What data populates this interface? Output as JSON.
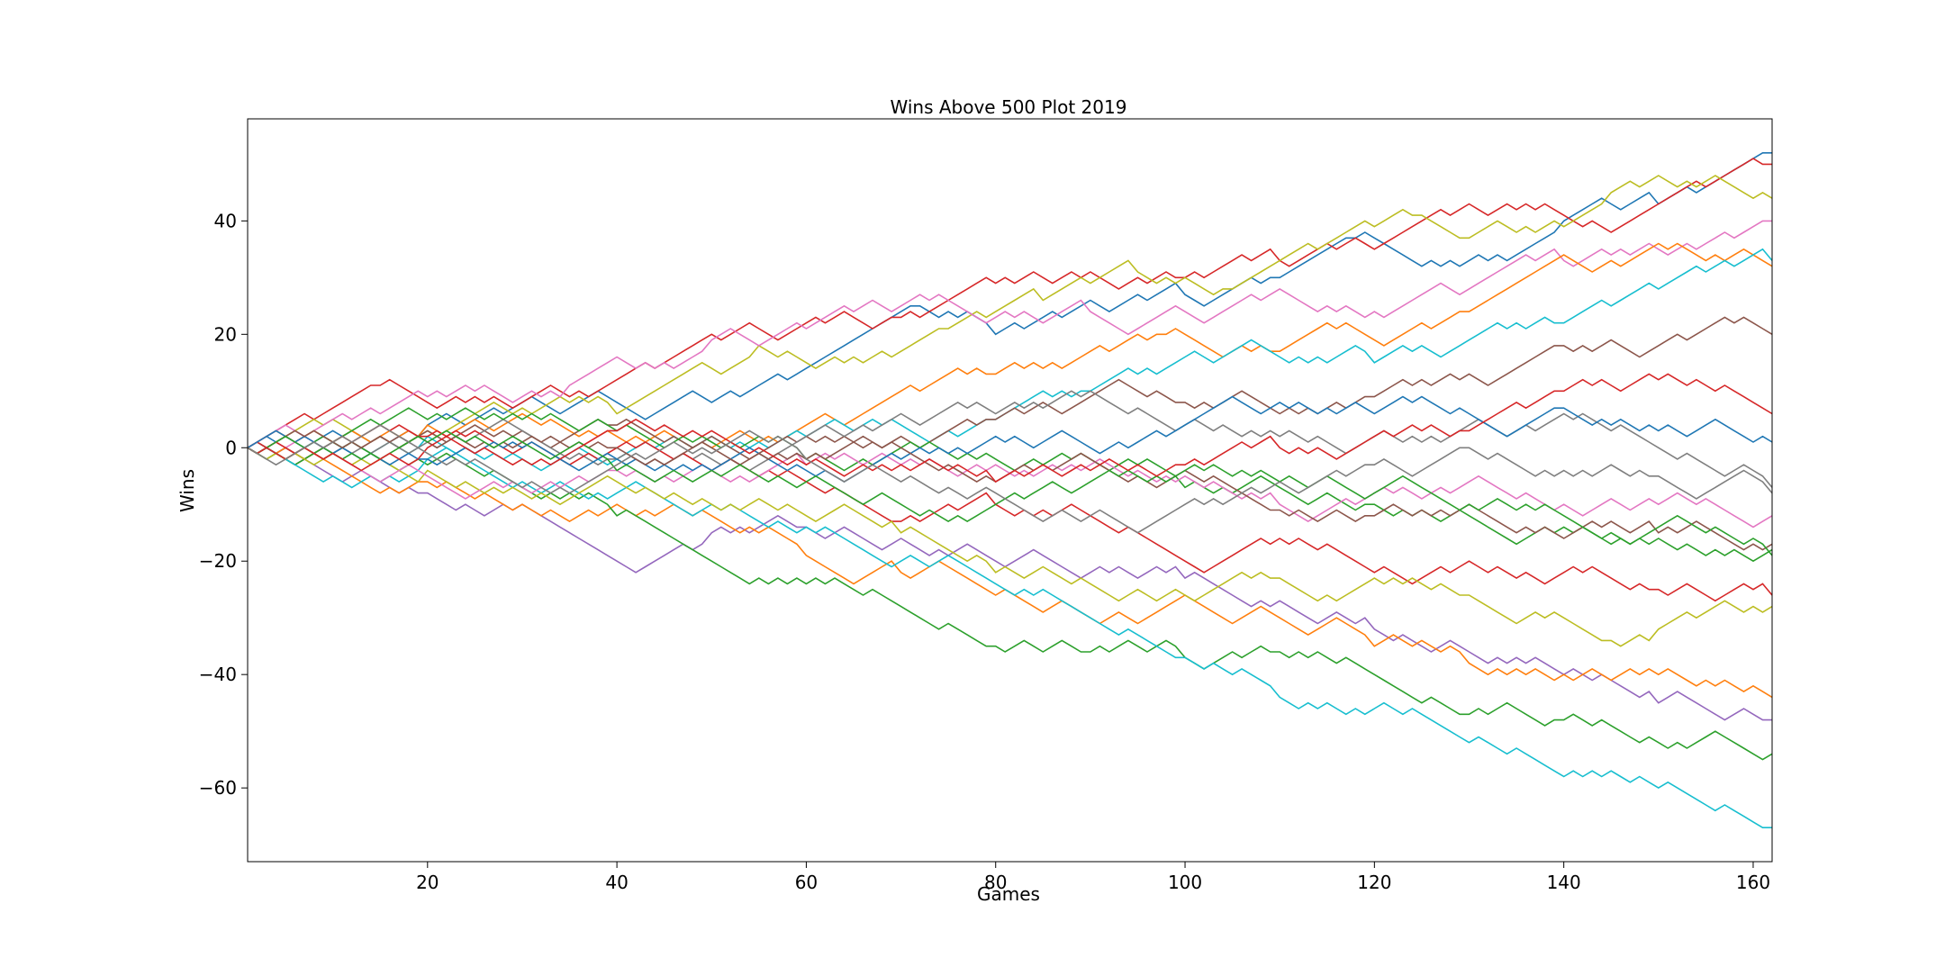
{
  "chart_data": {
    "type": "line",
    "title": "Wins Above 500 Plot 2019",
    "xlabel": "Games",
    "ylabel": "Wins",
    "xlim": [
      1,
      162
    ],
    "ylim": [
      -73,
      58
    ],
    "xticks": [
      20,
      40,
      60,
      80,
      100,
      120,
      140,
      160
    ],
    "yticks": [
      -60,
      -40,
      -20,
      0,
      20,
      40
    ],
    "grid": false,
    "legend": "none",
    "colors": [
      "#1f77b4",
      "#ff7f0e",
      "#2ca02c",
      "#d62728",
      "#9467bd",
      "#8c564b",
      "#e377c2",
      "#7f7f7f",
      "#bcbd22",
      "#17becf"
    ],
    "series": [
      {
        "color": "#1f77b4",
        "anchors": [
          [
            1,
            0
          ],
          [
            20,
            4
          ],
          [
            40,
            8
          ],
          [
            60,
            14
          ],
          [
            72,
            25
          ],
          [
            80,
            20
          ],
          [
            100,
            27
          ],
          [
            110,
            30
          ],
          [
            118,
            37
          ],
          [
            125,
            32
          ],
          [
            140,
            40
          ],
          [
            150,
            43
          ],
          [
            162,
            52
          ]
        ]
      },
      {
        "color": "#d62728",
        "anchors": [
          [
            1,
            0
          ],
          [
            15,
            11
          ],
          [
            30,
            8
          ],
          [
            45,
            15
          ],
          [
            60,
            22
          ],
          [
            70,
            23
          ],
          [
            80,
            29
          ],
          [
            90,
            31
          ],
          [
            100,
            30
          ],
          [
            110,
            33
          ],
          [
            118,
            37
          ],
          [
            125,
            40
          ],
          [
            140,
            41
          ],
          [
            150,
            43
          ],
          [
            162,
            50
          ]
        ]
      },
      {
        "color": "#bcbd22",
        "anchors": [
          [
            1,
            0
          ],
          [
            20,
            3
          ],
          [
            40,
            6
          ],
          [
            55,
            18
          ],
          [
            65,
            16
          ],
          [
            75,
            21
          ],
          [
            85,
            26
          ],
          [
            95,
            31
          ],
          [
            105,
            28
          ],
          [
            115,
            36
          ],
          [
            125,
            41
          ],
          [
            130,
            37
          ],
          [
            145,
            45
          ],
          [
            162,
            44
          ]
        ]
      },
      {
        "color": "#e377c2",
        "anchors": [
          [
            1,
            0
          ],
          [
            20,
            9
          ],
          [
            35,
            11
          ],
          [
            50,
            19
          ],
          [
            60,
            21
          ],
          [
            70,
            25
          ],
          [
            80,
            23
          ],
          [
            90,
            24
          ],
          [
            100,
            24
          ],
          [
            110,
            28
          ],
          [
            120,
            24
          ],
          [
            130,
            28
          ],
          [
            140,
            33
          ],
          [
            150,
            35
          ],
          [
            162,
            40
          ]
        ]
      },
      {
        "color": "#ff7f0e",
        "anchors": [
          [
            1,
            0
          ],
          [
            20,
            4
          ],
          [
            40,
            2
          ],
          [
            60,
            4
          ],
          [
            70,
            10
          ],
          [
            80,
            13
          ],
          [
            90,
            17
          ],
          [
            98,
            20
          ],
          [
            110,
            17
          ],
          [
            120,
            19
          ],
          [
            130,
            24
          ],
          [
            140,
            34
          ],
          [
            150,
            36
          ],
          [
            162,
            32
          ]
        ]
      },
      {
        "color": "#17becf",
        "anchors": [
          [
            1,
            0
          ],
          [
            20,
            2
          ],
          [
            40,
            -2
          ],
          [
            60,
            2
          ],
          [
            80,
            5
          ],
          [
            90,
            10
          ],
          [
            100,
            16
          ],
          [
            110,
            16
          ],
          [
            120,
            15
          ],
          [
            130,
            19
          ],
          [
            140,
            22
          ],
          [
            150,
            28
          ],
          [
            162,
            33
          ]
        ]
      },
      {
        "color": "#8c564b",
        "anchors": [
          [
            1,
            0
          ],
          [
            20,
            3
          ],
          [
            40,
            4
          ],
          [
            60,
            2
          ],
          [
            80,
            5
          ],
          [
            100,
            8
          ],
          [
            110,
            6
          ],
          [
            120,
            9
          ],
          [
            130,
            13
          ],
          [
            140,
            18
          ],
          [
            150,
            18
          ],
          [
            158,
            22
          ],
          [
            162,
            20
          ]
        ]
      },
      {
        "color": "#7f7f7f",
        "anchors": [
          [
            1,
            0
          ],
          [
            20,
            1
          ],
          [
            40,
            -2
          ],
          [
            60,
            2
          ],
          [
            80,
            6
          ],
          [
            100,
            4
          ],
          [
            120,
            2
          ],
          [
            140,
            6
          ],
          [
            150,
            0
          ],
          [
            162,
            -7
          ]
        ]
      },
      {
        "color": "#2ca02c",
        "anchors": [
          [
            1,
            0
          ],
          [
            20,
            5
          ],
          [
            40,
            3
          ],
          [
            60,
            -2
          ],
          [
            80,
            -2
          ],
          [
            100,
            -7
          ],
          [
            120,
            -10
          ],
          [
            140,
            -14
          ],
          [
            150,
            -16
          ],
          [
            162,
            -18
          ]
        ]
      },
      {
        "color": "#9467bd",
        "anchors": [
          [
            1,
            0
          ],
          [
            20,
            -8
          ],
          [
            30,
            -10
          ],
          [
            41,
            -21
          ],
          [
            50,
            -15
          ],
          [
            60,
            -14
          ],
          [
            70,
            -16
          ],
          [
            80,
            -20
          ],
          [
            90,
            -22
          ],
          [
            100,
            -23
          ],
          [
            110,
            -27
          ],
          [
            120,
            -32
          ],
          [
            130,
            -36
          ],
          [
            140,
            -40
          ],
          [
            150,
            -45
          ],
          [
            162,
            -48
          ]
        ]
      },
      {
        "color": "#ff7f0e",
        "anchors": [
          [
            1,
            0
          ],
          [
            20,
            -6
          ],
          [
            40,
            -10
          ],
          [
            60,
            -19
          ],
          [
            70,
            -22
          ],
          [
            80,
            -26
          ],
          [
            90,
            -30
          ],
          [
            100,
            -26
          ],
          [
            110,
            -30
          ],
          [
            120,
            -35
          ],
          [
            130,
            -38
          ],
          [
            140,
            -40
          ],
          [
            150,
            -40
          ],
          [
            162,
            -44
          ]
        ]
      },
      {
        "color": "#2ca02c",
        "anchors": [
          [
            1,
            0
          ],
          [
            20,
            -3
          ],
          [
            40,
            -12
          ],
          [
            50,
            -20
          ],
          [
            60,
            -24
          ],
          [
            70,
            -28
          ],
          [
            80,
            -35
          ],
          [
            90,
            -36
          ],
          [
            100,
            -37
          ],
          [
            110,
            -36
          ],
          [
            120,
            -40
          ],
          [
            130,
            -47
          ],
          [
            140,
            -48
          ],
          [
            150,
            -52
          ],
          [
            162,
            -54
          ]
        ]
      },
      {
        "color": "#17becf",
        "anchors": [
          [
            1,
            0
          ],
          [
            20,
            -2
          ],
          [
            40,
            -8
          ],
          [
            50,
            -10
          ],
          [
            60,
            -14
          ],
          [
            70,
            -20
          ],
          [
            80,
            -24
          ],
          [
            90,
            -30
          ],
          [
            100,
            -37
          ],
          [
            110,
            -44
          ],
          [
            120,
            -46
          ],
          [
            130,
            -52
          ],
          [
            140,
            -58
          ],
          [
            150,
            -60
          ],
          [
            162,
            -67
          ]
        ]
      },
      {
        "color": "#d62728",
        "anchors": [
          [
            1,
            0
          ],
          [
            20,
            2
          ],
          [
            40,
            0
          ],
          [
            60,
            -6
          ],
          [
            70,
            -13
          ],
          [
            80,
            -10
          ],
          [
            90,
            -12
          ],
          [
            100,
            -20
          ],
          [
            110,
            -16
          ],
          [
            120,
            -22
          ],
          [
            130,
            -20
          ],
          [
            140,
            -22
          ],
          [
            150,
            -25
          ],
          [
            162,
            -26
          ]
        ]
      },
      {
        "color": "#bcbd22",
        "anchors": [
          [
            1,
            0
          ],
          [
            20,
            -4
          ],
          [
            40,
            -6
          ],
          [
            60,
            -12
          ],
          [
            70,
            -15
          ],
          [
            80,
            -22
          ],
          [
            90,
            -24
          ],
          [
            100,
            -26
          ],
          [
            110,
            -23
          ],
          [
            120,
            -23
          ],
          [
            130,
            -26
          ],
          [
            140,
            -30
          ],
          [
            145,
            -34
          ],
          [
            150,
            -32
          ],
          [
            162,
            -28
          ]
        ]
      },
      {
        "color": "#e377c2",
        "anchors": [
          [
            1,
            0
          ],
          [
            20,
            -5
          ],
          [
            40,
            -4
          ],
          [
            60,
            -3
          ],
          [
            80,
            -3
          ],
          [
            100,
            -5
          ],
          [
            110,
            -10
          ],
          [
            120,
            -8
          ],
          [
            130,
            -6
          ],
          [
            140,
            -10
          ],
          [
            150,
            -10
          ],
          [
            162,
            -12
          ]
        ]
      },
      {
        "color": "#1f77b4",
        "anchors": [
          [
            1,
            0
          ],
          [
            20,
            -2
          ],
          [
            40,
            -2
          ],
          [
            60,
            -4
          ],
          [
            80,
            2
          ],
          [
            100,
            4
          ],
          [
            110,
            8
          ],
          [
            120,
            6
          ],
          [
            130,
            6
          ],
          [
            140,
            7
          ],
          [
            150,
            3
          ],
          [
            162,
            1
          ]
        ]
      },
      {
        "color": "#8c564b",
        "anchors": [
          [
            1,
            0
          ],
          [
            20,
            1
          ],
          [
            40,
            0
          ],
          [
            60,
            -2
          ],
          [
            80,
            -6
          ],
          [
            100,
            -4
          ],
          [
            110,
            -11
          ],
          [
            120,
            -12
          ],
          [
            130,
            -10
          ],
          [
            140,
            -16
          ],
          [
            150,
            -15
          ],
          [
            162,
            -17
          ]
        ]
      },
      {
        "color": "#2ca02c",
        "anchors": [
          [
            1,
            0
          ],
          [
            20,
            1
          ],
          [
            40,
            -4
          ],
          [
            60,
            -6
          ],
          [
            80,
            -10
          ],
          [
            100,
            -4
          ],
          [
            110,
            -6
          ],
          [
            120,
            -8
          ],
          [
            130,
            -10
          ],
          [
            140,
            -12
          ],
          [
            150,
            -14
          ],
          [
            162,
            -19
          ]
        ]
      },
      {
        "color": "#d62728",
        "anchors": [
          [
            1,
            0
          ],
          [
            20,
            0
          ],
          [
            40,
            3
          ],
          [
            60,
            -3
          ],
          [
            80,
            -6
          ],
          [
            100,
            -3
          ],
          [
            110,
            0
          ],
          [
            120,
            2
          ],
          [
            130,
            3
          ],
          [
            140,
            10
          ],
          [
            150,
            12
          ],
          [
            162,
            6
          ]
        ]
      },
      {
        "color": "#7f7f7f",
        "anchors": [
          [
            1,
            0
          ],
          [
            20,
            -1
          ],
          [
            40,
            -3
          ],
          [
            60,
            -2
          ],
          [
            80,
            -8
          ],
          [
            100,
            -10
          ],
          [
            110,
            -6
          ],
          [
            120,
            -3
          ],
          [
            130,
            0
          ],
          [
            140,
            -4
          ],
          [
            150,
            -5
          ],
          [
            162,
            -8
          ]
        ]
      }
    ]
  }
}
